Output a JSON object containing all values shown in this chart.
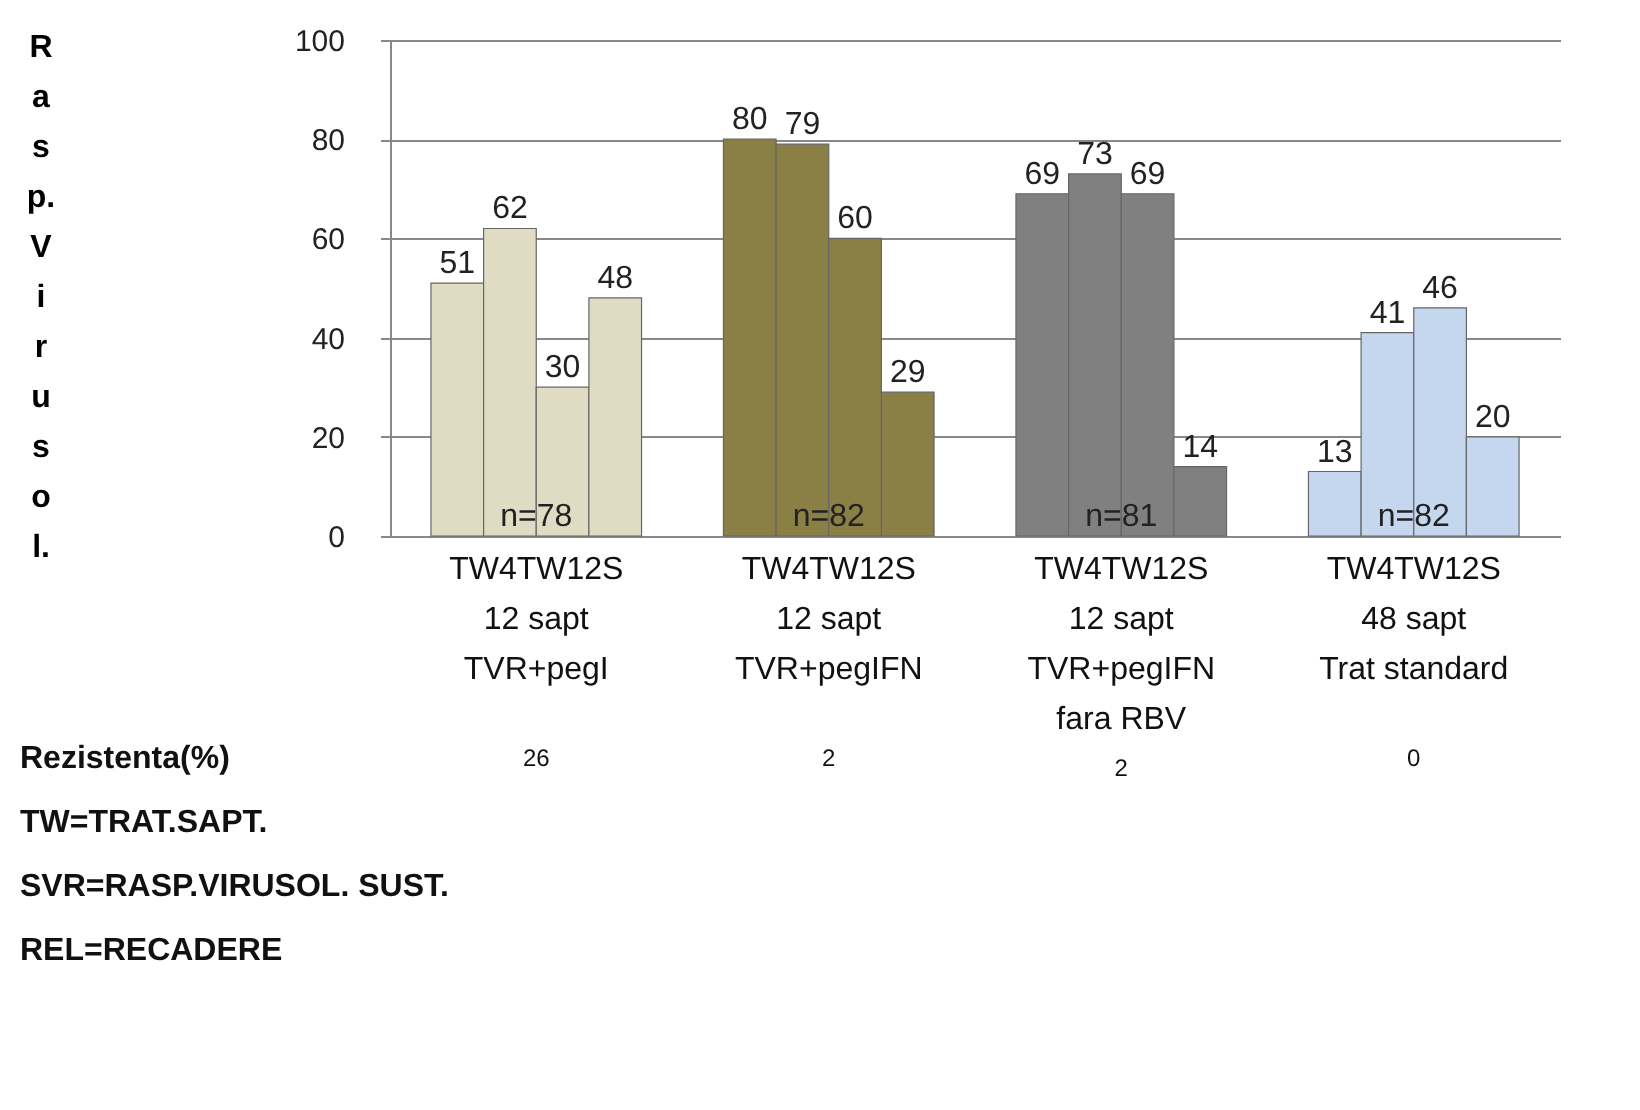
{
  "chart_data": {
    "type": "bar",
    "ylabel": "Rasp. Virusol.",
    "categories": [
      "TW4TW12S\n12 sapt\nTVR+pegI",
      "TW4TW12S\n12 sapt\nTVR+pegIFN",
      "TW4TW12S\n12 sapt\nTVR+pegIFN\nfara RBV",
      "TW4TW12S\n48 sapt\nTrat standard"
    ],
    "series": [
      {
        "values": [
          51,
          80,
          69,
          13
        ],
        "colors": [
          "#e0dcc4",
          "#8a7f45",
          "#808080",
          "#c5d7ee"
        ]
      },
      {
        "values": [
          62,
          79,
          73,
          41
        ],
        "colors": [
          "#e0dcc4",
          "#8a7f45",
          "#808080",
          "#c5d7ee"
        ]
      },
      {
        "values": [
          30,
          60,
          69,
          46
        ],
        "colors": [
          "#e0dcc4",
          "#8a7f45",
          "#808080",
          "#c5d7ee"
        ]
      },
      {
        "values": [
          48,
          29,
          14,
          20
        ],
        "colors": [
          "#e0dcc4",
          "#8a7f45",
          "#808080",
          "#c5d7ee"
        ]
      }
    ],
    "ylim": [
      0,
      100
    ],
    "yticks": [
      0,
      20,
      40,
      60,
      80,
      100
    ],
    "grid": "y",
    "data_labels": true,
    "annotations": [
      {
        "text": "n=78",
        "x": "TW4TW12S\n12 sapt\nTVR+pegI",
        "y": 0
      },
      {
        "text": "n=82",
        "x": "TW4TW12S\n12 sapt\nTVR+pegIFN",
        "y": 0
      },
      {
        "text": "n=81",
        "x": "TW4TW12S\n12 sapt\nTVR+pegIFN\nfara RBV",
        "y": 0
      },
      {
        "text": "n=82",
        "x": "TW4TW12S\n48 sapt\nTrat standard",
        "y": 0
      },
      "Rezistenta(%)",
      "26",
      "2",
      "2",
      "0",
      "TW=TRAT.SAPT.",
      "SVR=RASP.VIRUSOL. SUST.",
      "REL=RECADERE"
    ]
  }
}
